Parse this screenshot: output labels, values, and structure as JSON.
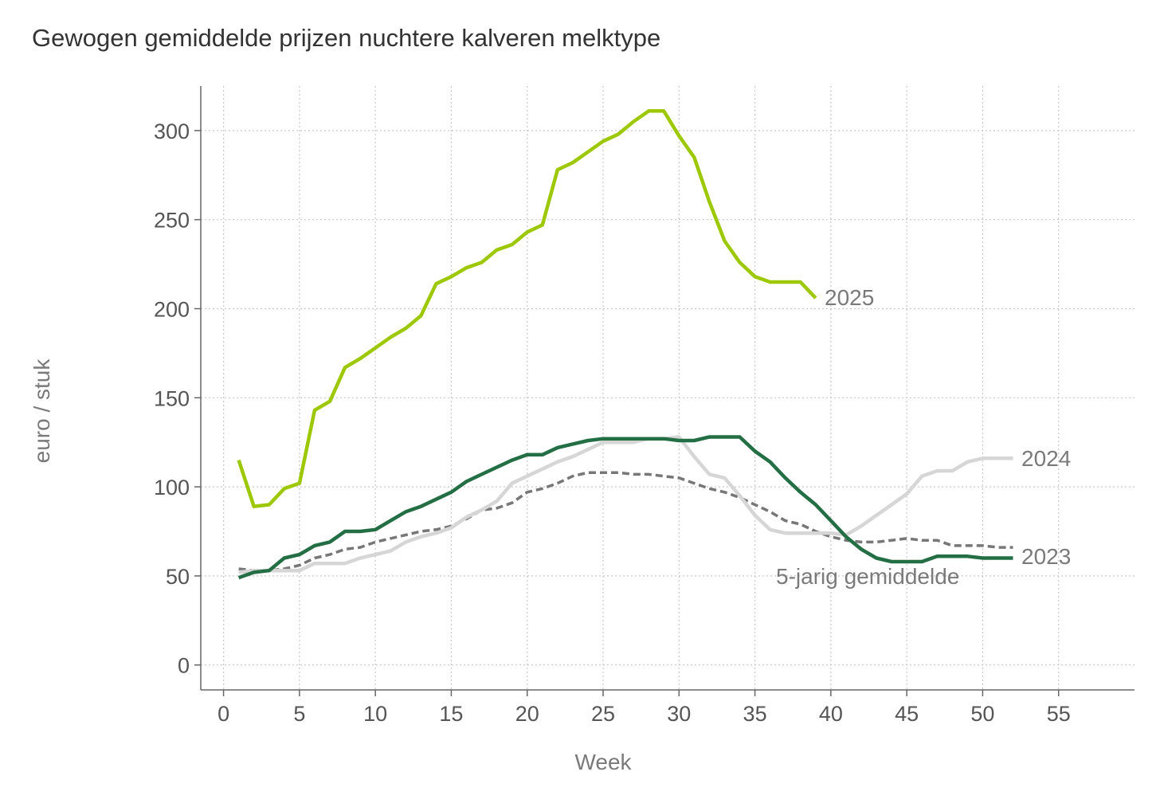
{
  "chart_data": {
    "type": "line",
    "title": "Gewogen gemiddelde prijzen nuchtere kalveren melktype",
    "xlabel": "Week",
    "ylabel": "euro / stuk",
    "xlim": [
      -1.5,
      60
    ],
    "ylim": [
      -14,
      325
    ],
    "xticks": [
      0,
      5,
      10,
      15,
      20,
      25,
      30,
      35,
      40,
      45,
      50,
      55
    ],
    "yticks": [
      0,
      50,
      100,
      150,
      200,
      250,
      300
    ],
    "grid": true,
    "legend": "direct labels at line ends",
    "series": [
      {
        "name": "2025",
        "color": "#9dc806",
        "dash": "solid",
        "x": [
          1,
          2,
          3,
          4,
          5,
          6,
          7,
          8,
          9,
          10,
          11,
          12,
          13,
          14,
          15,
          16,
          17,
          18,
          19,
          20,
          21,
          22,
          23,
          24,
          25,
          26,
          27,
          28,
          29,
          30,
          31,
          32,
          33,
          34,
          35,
          36,
          37,
          38,
          39
        ],
        "y": [
          115,
          89,
          90,
          99,
          102,
          143,
          148,
          167,
          172,
          178,
          184,
          189,
          196,
          214,
          218,
          223,
          226,
          233,
          236,
          243,
          247,
          278,
          282,
          288,
          294,
          298,
          305,
          311,
          311,
          297,
          285,
          260,
          238,
          226,
          218,
          215,
          215,
          215,
          206
        ]
      },
      {
        "name": "2024",
        "color": "#d6d6d6",
        "dash": "solid",
        "x": [
          1,
          2,
          3,
          4,
          5,
          6,
          7,
          8,
          9,
          10,
          11,
          12,
          13,
          14,
          15,
          16,
          17,
          18,
          19,
          20,
          21,
          22,
          23,
          24,
          25,
          26,
          27,
          28,
          29,
          30,
          31,
          32,
          33,
          34,
          35,
          36,
          37,
          38,
          39,
          40,
          41,
          42,
          43,
          44,
          45,
          46,
          47,
          48,
          49,
          50,
          51,
          52
        ],
        "y": [
          52,
          53,
          53,
          53,
          53,
          57,
          57,
          57,
          60,
          62,
          64,
          69,
          72,
          74,
          77,
          83,
          87,
          92,
          102,
          106,
          110,
          114,
          117,
          121,
          125,
          125,
          125,
          127,
          127,
          128,
          117,
          107,
          105,
          95,
          84,
          76,
          74,
          74,
          74,
          74,
          73,
          78,
          84,
          90,
          96,
          106,
          109,
          109,
          114,
          116,
          116,
          116
        ]
      },
      {
        "name": "2023",
        "color": "#236e44",
        "dash": "solid",
        "x": [
          1,
          2,
          3,
          4,
          5,
          6,
          7,
          8,
          9,
          10,
          11,
          12,
          13,
          14,
          15,
          16,
          17,
          18,
          19,
          20,
          21,
          22,
          23,
          24,
          25,
          26,
          27,
          28,
          29,
          30,
          31,
          32,
          33,
          34,
          35,
          36,
          37,
          38,
          39,
          40,
          41,
          42,
          43,
          44,
          45,
          46,
          47,
          48,
          49,
          50,
          51,
          52
        ],
        "y": [
          49,
          52,
          53,
          60,
          62,
          67,
          69,
          75,
          75,
          76,
          81,
          86,
          89,
          93,
          97,
          103,
          107,
          111,
          115,
          118,
          118,
          122,
          124,
          126,
          127,
          127,
          127,
          127,
          127,
          126,
          126,
          128,
          128,
          128,
          120,
          114,
          105,
          97,
          90,
          81,
          72,
          65,
          60,
          58,
          58,
          58,
          61,
          61,
          61,
          60,
          60,
          60
        ]
      },
      {
        "name": "5-jarig gemiddelde",
        "color": "#777777",
        "dash": "dashed",
        "x": [
          1,
          2,
          3,
          4,
          5,
          6,
          7,
          8,
          9,
          10,
          11,
          12,
          13,
          14,
          15,
          16,
          17,
          18,
          19,
          20,
          21,
          22,
          23,
          24,
          25,
          26,
          27,
          28,
          29,
          30,
          31,
          32,
          33,
          34,
          35,
          36,
          37,
          38,
          39,
          40,
          41,
          42,
          43,
          44,
          45,
          46,
          47,
          48,
          49,
          50,
          51,
          52
        ],
        "y": [
          54,
          53,
          53,
          54,
          56,
          60,
          62,
          65,
          66,
          69,
          71,
          73,
          75,
          76,
          78,
          82,
          87,
          88,
          91,
          97,
          99,
          102,
          106,
          108,
          108,
          108,
          107,
          107,
          106,
          105,
          102,
          99,
          97,
          94,
          90,
          86,
          81,
          79,
          75,
          72,
          70,
          69,
          69,
          70,
          71,
          70,
          70,
          67,
          67,
          67,
          66,
          66
        ]
      }
    ],
    "series_labels": [
      "2025",
      "2024",
      "2023",
      "5-jarig gemiddelde"
    ]
  }
}
